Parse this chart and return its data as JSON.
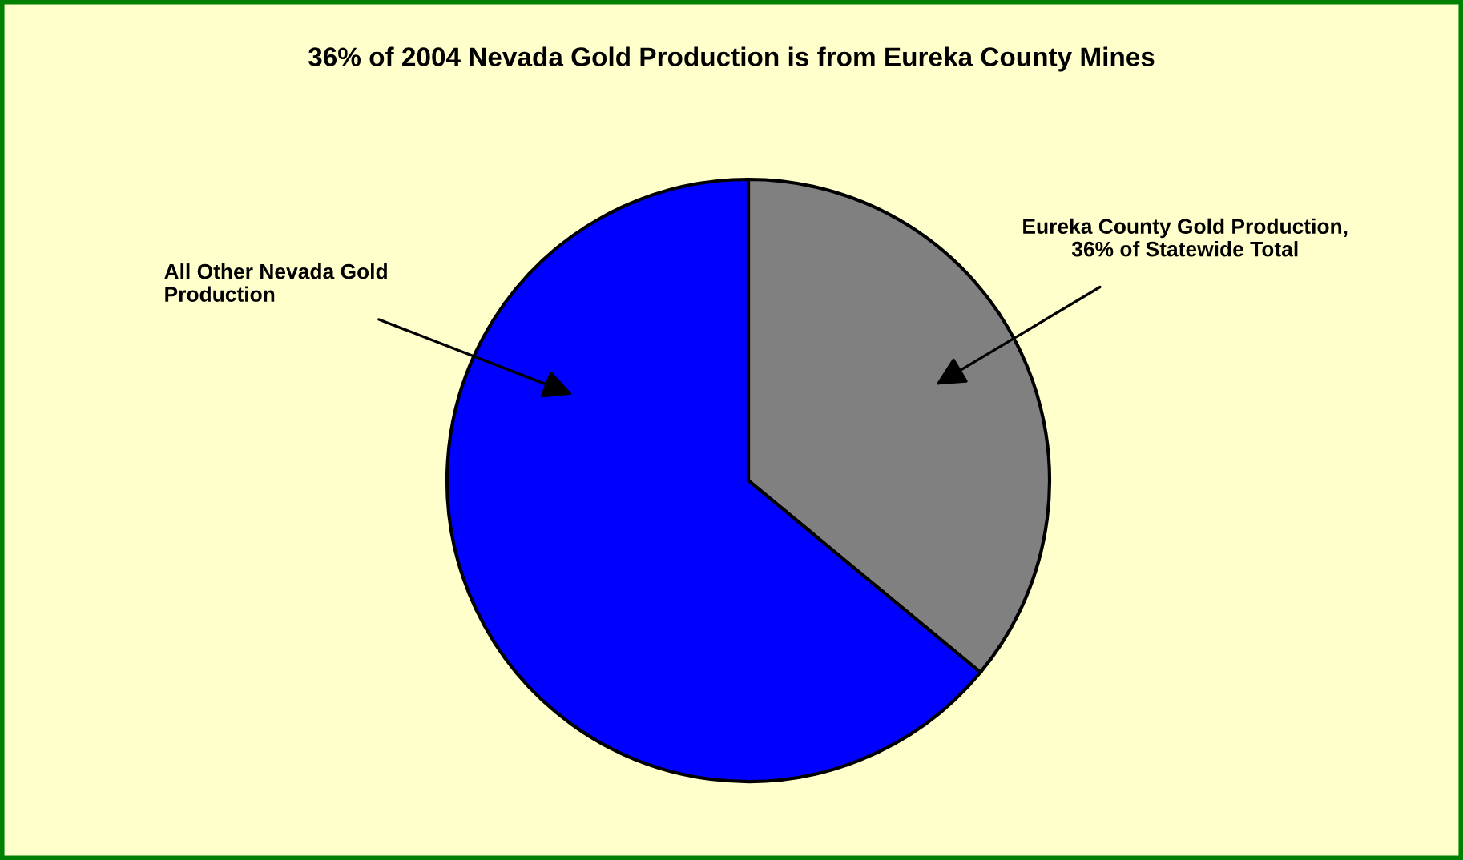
{
  "chart_data": {
    "type": "pie",
    "title": "36% of 2004 Nevada Gold Production is from Eureka County Mines",
    "categories": [
      "Eureka County Gold Production,\n36% of Statewide Total",
      "All Other Nevada Gold\nProduction"
    ],
    "values": [
      36,
      64
    ],
    "colors": [
      "#808080",
      "#0000ff"
    ]
  }
}
